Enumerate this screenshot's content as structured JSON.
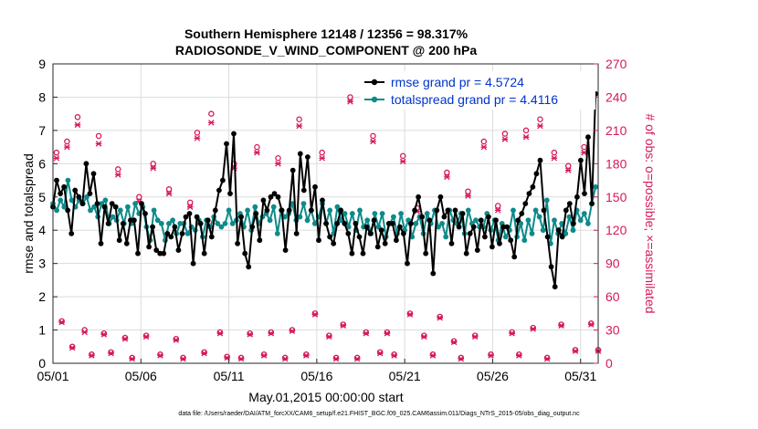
{
  "chart_data": {
    "type": "line",
    "title_line1": "Southern Hemisphere 12148 / 12356 = 98.317%",
    "title_line2": "RADIOSONDE_V_WIND_COMPONENT @ 200 hPa",
    "xlabel": "May.01,2015 00:00:00 start",
    "ylabel": "rmse and totalspread",
    "ylabel_right": "# of obs: o=possible; ×=assimilated",
    "footnote": "data file: /Users/raeder/DAI/ATM_forcXX/CAM6_setup/f.e21.FHIST_BGC.f09_025.CAM6assim.011/Diags_NTrS_2015-05/obs_diag_output.nc",
    "xlim": [
      1,
      32
    ],
    "ylim": [
      0,
      9
    ],
    "ylim_right": [
      0,
      270
    ],
    "x_ticks": [
      1,
      6,
      11,
      16,
      21,
      26,
      31
    ],
    "x_tick_labels": [
      "05/01",
      "05/06",
      "05/11",
      "05/16",
      "05/21",
      "05/26",
      "05/31"
    ],
    "y_ticks": [
      0,
      1,
      2,
      3,
      4,
      5,
      6,
      7,
      8,
      9
    ],
    "y_tick_labels": [
      "0",
      "1",
      "2",
      "3",
      "4",
      "5",
      "6",
      "7",
      "8",
      "9"
    ],
    "y_ticks_right": [
      0,
      30,
      60,
      90,
      120,
      150,
      180,
      210,
      240,
      270
    ],
    "y_tick_labels_right": [
      "0",
      "30",
      "60",
      "90",
      "120",
      "150",
      "180",
      "210",
      "240",
      "270"
    ],
    "grid": true,
    "legend_position": "top-right",
    "colors": {
      "rmse": "#000000",
      "totalspread": "#0e8a8a",
      "obs": "#d6185b",
      "legend_text": "#0033cc"
    },
    "series": [
      {
        "name": "rmse grand pr = 4.5724",
        "color": "#000000",
        "values": [
          4.7,
          5.5,
          5.1,
          5.3,
          4.6,
          3.9,
          5.2,
          5.0,
          4.8,
          6.0,
          5.1,
          5.7,
          4.8,
          3.6,
          4.7,
          4.2,
          4.8,
          4.7,
          3.7,
          4.2,
          3.6,
          4.3,
          4.3,
          3.3,
          4.8,
          4.5,
          3.5,
          4.1,
          3.4,
          3.3,
          3.3,
          3.9,
          3.8,
          4.1,
          3.4,
          3.9,
          4.4,
          4.5,
          3.0,
          4.4,
          4.2,
          3.3,
          4.3,
          3.8,
          4.6,
          5.2,
          5.5,
          6.6,
          5.1,
          6.9,
          3.6,
          4.4,
          3.3,
          2.9,
          4.1,
          4.5,
          3.7,
          4.9,
          4.6,
          5.0,
          5.1,
          5.0,
          4.6,
          3.4,
          4.6,
          5.8,
          3.9,
          6.3,
          5.2,
          6.2,
          4.6,
          5.3,
          3.7,
          4.9,
          4.2,
          3.8,
          3.6,
          4.2,
          4.6,
          4.2,
          3.9,
          3.3,
          4.2,
          3.8,
          3.3,
          4.1,
          3.9,
          4.3,
          3.5,
          4.0,
          3.6,
          4.2,
          4.2,
          3.7,
          4.1,
          3.9,
          3.0,
          4.2,
          4.6,
          5.0,
          4.4,
          3.3,
          4.3,
          2.7,
          4.6,
          5.0,
          4.4,
          4.6,
          3.6,
          4.6,
          4.1,
          4.5,
          3.3,
          3.9,
          4.1,
          3.4,
          4.3,
          3.8,
          4.4,
          3.5,
          4.3,
          3.6,
          4.1,
          4.1,
          3.7,
          3.2,
          4.3,
          4.5,
          4.8,
          5.1,
          5.3,
          5.7,
          6.1,
          4.6,
          3.8,
          2.9,
          2.3,
          4.0,
          3.8,
          4.6,
          4.8,
          4.2,
          5.0,
          6.1,
          5.1,
          6.8,
          4.8,
          8.1
        ]
      },
      {
        "name": "totalspread grand pr = 4.4116",
        "color": "#0e8a8a",
        "values": [
          4.8,
          4.6,
          4.9,
          4.7,
          5.5,
          4.9,
          4.7,
          4.9,
          4.8,
          5.0,
          4.6,
          4.7,
          4.4,
          4.8,
          4.9,
          4.2,
          4.4,
          4.3,
          4.6,
          4.2,
          4.7,
          4.2,
          4.8,
          4.5,
          4.7,
          4.1,
          3.7,
          4.6,
          4.3,
          4.2,
          3.7,
          4.2,
          4.3,
          3.9,
          4.2,
          4.2,
          3.9,
          4.1,
          4.0,
          4.3,
          3.8,
          4.3,
          4.1,
          4.4,
          4.2,
          4.1,
          4.2,
          4.6,
          4.2,
          4.3,
          4.5,
          4.1,
          4.6,
          4.0,
          4.7,
          4.2,
          4.4,
          4.5,
          4.3,
          4.7,
          3.9,
          4.6,
          4.4,
          4.5,
          4.8,
          4.3,
          4.4,
          4.8,
          4.3,
          4.6,
          4.2,
          4.4,
          4.8,
          4.2,
          4.6,
          3.9,
          4.7,
          4.3,
          4.5,
          4.1,
          4.5,
          4.0,
          4.6,
          4.1,
          4.3,
          3.9,
          4.5,
          4.1,
          4.5,
          3.8,
          4.2,
          4.4,
          3.9,
          4.5,
          4.0,
          4.3,
          3.8,
          4.2,
          4.4,
          3.9,
          4.5,
          4.2,
          4.6,
          4.1,
          4.2,
          3.8,
          4.6,
          4.3,
          4.2,
          4.5,
          3.9,
          4.6,
          4.2,
          4.3,
          4.1,
          4.1,
          4.5,
          4.0,
          4.3,
          3.7,
          4.2,
          3.8,
          4.0,
          4.6,
          3.8,
          4.2,
          3.7,
          4.3,
          3.9,
          4.6,
          4.4,
          4.0,
          4.9,
          3.6,
          4.3,
          3.9,
          4.2,
          3.9,
          4.4,
          4.0,
          4.6,
          4.3,
          4.5,
          4.2,
          4.8,
          5.3
        ]
      }
    ],
    "obs_possible": [
      [
        1.2,
        190
      ],
      [
        1.5,
        38
      ],
      [
        1.8,
        200
      ],
      [
        2.1,
        15
      ],
      [
        2.4,
        222
      ],
      [
        2.8,
        30
      ],
      [
        3.2,
        8
      ],
      [
        3.6,
        205
      ],
      [
        3.9,
        27
      ],
      [
        4.3,
        10
      ],
      [
        4.7,
        175
      ],
      [
        5.1,
        23
      ],
      [
        5.5,
        5
      ],
      [
        5.9,
        150
      ],
      [
        6.3,
        25
      ],
      [
        6.7,
        180
      ],
      [
        7.1,
        8
      ],
      [
        7.6,
        157
      ],
      [
        8.0,
        22
      ],
      [
        8.4,
        5
      ],
      [
        8.8,
        145
      ],
      [
        9.2,
        208
      ],
      [
        9.6,
        10
      ],
      [
        10.0,
        225
      ],
      [
        10.5,
        28
      ],
      [
        10.9,
        6
      ],
      [
        11.3,
        180
      ],
      [
        11.7,
        5
      ],
      [
        12.2,
        27
      ],
      [
        12.6,
        195
      ],
      [
        13.0,
        8
      ],
      [
        13.4,
        28
      ],
      [
        13.8,
        185
      ],
      [
        14.2,
        5
      ],
      [
        14.6,
        30
      ],
      [
        15.0,
        220
      ],
      [
        15.4,
        8
      ],
      [
        15.9,
        45
      ],
      [
        16.3,
        190
      ],
      [
        16.7,
        25
      ],
      [
        17.1,
        5
      ],
      [
        17.5,
        35
      ],
      [
        17.9,
        240
      ],
      [
        18.3,
        5
      ],
      [
        18.8,
        28
      ],
      [
        19.2,
        205
      ],
      [
        19.6,
        10
      ],
      [
        20.0,
        28
      ],
      [
        20.4,
        8
      ],
      [
        20.9,
        187
      ],
      [
        21.3,
        45
      ],
      [
        21.7,
        140
      ],
      [
        22.1,
        25
      ],
      [
        22.6,
        8
      ],
      [
        23.0,
        42
      ],
      [
        23.4,
        172
      ],
      [
        23.8,
        20
      ],
      [
        24.2,
        5
      ],
      [
        24.6,
        155
      ],
      [
        25.0,
        25
      ],
      [
        25.5,
        200
      ],
      [
        25.9,
        8
      ],
      [
        26.3,
        142
      ],
      [
        26.7,
        207
      ],
      [
        27.1,
        28
      ],
      [
        27.5,
        8
      ],
      [
        27.9,
        210
      ],
      [
        28.3,
        32
      ],
      [
        28.7,
        220
      ],
      [
        29.1,
        5
      ],
      [
        29.5,
        190
      ],
      [
        29.9,
        35
      ],
      [
        30.3,
        178
      ],
      [
        30.7,
        12
      ],
      [
        31.2,
        195
      ],
      [
        31.6,
        36
      ],
      [
        32.0,
        12
      ]
    ],
    "obs_assimilated": [
      [
        1.2,
        185
      ],
      [
        1.5,
        37
      ],
      [
        1.8,
        195
      ],
      [
        2.1,
        14
      ],
      [
        2.4,
        215
      ],
      [
        2.8,
        28
      ],
      [
        3.2,
        7
      ],
      [
        3.6,
        198
      ],
      [
        3.9,
        26
      ],
      [
        4.3,
        9
      ],
      [
        4.7,
        170
      ],
      [
        5.1,
        22
      ],
      [
        5.5,
        4
      ],
      [
        5.9,
        146
      ],
      [
        6.3,
        24
      ],
      [
        6.7,
        176
      ],
      [
        7.1,
        7
      ],
      [
        7.6,
        153
      ],
      [
        8.0,
        21
      ],
      [
        8.4,
        4
      ],
      [
        8.8,
        141
      ],
      [
        9.2,
        203
      ],
      [
        9.6,
        9
      ],
      [
        10.0,
        217
      ],
      [
        10.5,
        27
      ],
      [
        10.9,
        5
      ],
      [
        11.3,
        176
      ],
      [
        11.7,
        4
      ],
      [
        12.2,
        26
      ],
      [
        12.6,
        190
      ],
      [
        13.0,
        7
      ],
      [
        13.4,
        27
      ],
      [
        13.8,
        180
      ],
      [
        14.2,
        4
      ],
      [
        14.6,
        29
      ],
      [
        15.0,
        214
      ],
      [
        15.4,
        7
      ],
      [
        15.9,
        44
      ],
      [
        16.3,
        185
      ],
      [
        16.7,
        24
      ],
      [
        17.1,
        4
      ],
      [
        17.5,
        34
      ],
      [
        17.9,
        236
      ],
      [
        18.3,
        4
      ],
      [
        18.8,
        27
      ],
      [
        19.2,
        200
      ],
      [
        19.6,
        9
      ],
      [
        20.0,
        27
      ],
      [
        20.4,
        7
      ],
      [
        20.9,
        182
      ],
      [
        21.3,
        44
      ],
      [
        21.7,
        137
      ],
      [
        22.1,
        24
      ],
      [
        22.6,
        7
      ],
      [
        23.0,
        41
      ],
      [
        23.4,
        168
      ],
      [
        23.8,
        19
      ],
      [
        24.2,
        4
      ],
      [
        24.6,
        151
      ],
      [
        25.0,
        24
      ],
      [
        25.5,
        195
      ],
      [
        25.9,
        7
      ],
      [
        26.3,
        138
      ],
      [
        26.7,
        202
      ],
      [
        27.1,
        27
      ],
      [
        27.5,
        7
      ],
      [
        27.9,
        204
      ],
      [
        28.3,
        31
      ],
      [
        28.7,
        214
      ],
      [
        29.1,
        4
      ],
      [
        29.5,
        185
      ],
      [
        29.9,
        34
      ],
      [
        30.3,
        174
      ],
      [
        30.7,
        11
      ],
      [
        31.2,
        190
      ],
      [
        31.6,
        35
      ],
      [
        32.0,
        11
      ]
    ]
  }
}
